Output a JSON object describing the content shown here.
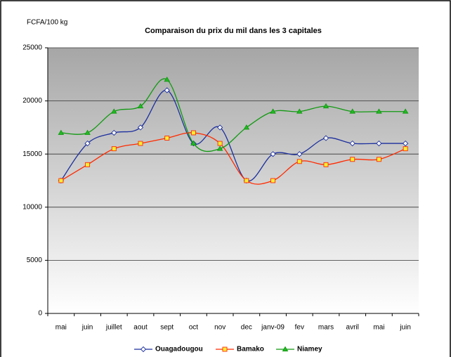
{
  "chart_data": {
    "type": "line",
    "title": "Comparaison du prix du mil dans les 3 capitales",
    "y_label": "FCFA/100 kg",
    "categories": [
      "mai",
      "juin",
      "juillet",
      "aout",
      "sept",
      "oct",
      "nov",
      "dec",
      "janv-09",
      "fev",
      "mars",
      "avril",
      "mai",
      "juin"
    ],
    "series": [
      {
        "name": "Ouagadougou",
        "color": "#1c2f9e",
        "marker": "diamond",
        "marker_fill": "#ffffff",
        "values": [
          12500,
          16000,
          17000,
          17500,
          21000,
          16000,
          17500,
          12500,
          15000,
          15000,
          16500,
          16000,
          16000,
          16000
        ]
      },
      {
        "name": "Bamako",
        "color": "#ff2a00",
        "marker": "square",
        "marker_fill": "#ffee33",
        "values": [
          12500,
          14000,
          15500,
          16000,
          16500,
          17000,
          16000,
          12500,
          12500,
          14300,
          14000,
          14500,
          14500,
          15500
        ]
      },
      {
        "name": "Niamey",
        "color": "#119911",
        "marker": "triangle",
        "marker_fill": "#22bb22",
        "values": [
          17000,
          17000,
          19000,
          19500,
          22000,
          16000,
          15500,
          17500,
          19000,
          19000,
          19500,
          19000,
          19000,
          19000
        ]
      }
    ],
    "ylim": [
      0,
      25000
    ],
    "yticks": [
      0,
      5000,
      10000,
      15000,
      20000,
      25000
    ],
    "grid": true,
    "smooth": true,
    "legend": "bottom"
  }
}
